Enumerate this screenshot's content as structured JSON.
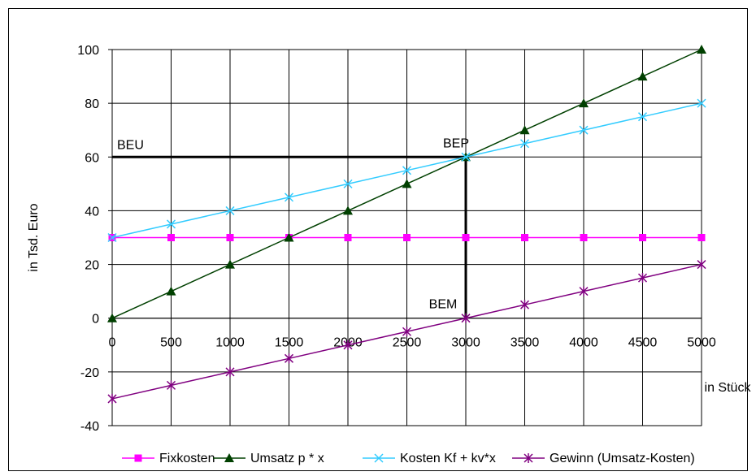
{
  "chart_data": {
    "type": "line",
    "title": "",
    "xlabel": "in Stück",
    "ylabel": "in Tsd. Euro",
    "x": [
      0,
      500,
      1000,
      1500,
      2000,
      2500,
      3000,
      3500,
      4000,
      4500,
      5000
    ],
    "xlim": [
      0,
      5000
    ],
    "ylim": [
      -40,
      100
    ],
    "x_ticks": [
      0,
      500,
      1000,
      1500,
      2000,
      2500,
      3000,
      3500,
      4000,
      4500,
      5000
    ],
    "y_ticks": [
      -40,
      -20,
      0,
      20,
      40,
      60,
      80,
      100
    ],
    "grid": true,
    "legend_position": "bottom",
    "series": [
      {
        "name": "Fixkosten",
        "color": "#ff00ff",
        "marker": "square",
        "values": [
          30,
          30,
          30,
          30,
          30,
          30,
          30,
          30,
          30,
          30,
          30
        ]
      },
      {
        "name": "Umsatz p * x",
        "color": "#004000",
        "marker": "triangle",
        "values": [
          0,
          10,
          20,
          30,
          40,
          50,
          60,
          70,
          80,
          90,
          100
        ]
      },
      {
        "name": "Kosten Kf + kv*x",
        "color": "#33ccff",
        "marker": "x",
        "values": [
          30,
          35,
          40,
          45,
          50,
          55,
          60,
          65,
          70,
          75,
          80
        ]
      },
      {
        "name": "Gewinn (Umsatz-Kosten)",
        "color": "#800080",
        "marker": "star",
        "values": [
          -30,
          -25,
          -20,
          -15,
          -10,
          -5,
          0,
          5,
          10,
          15,
          20
        ]
      }
    ],
    "annotations": [
      {
        "label": "BEU",
        "x": 0,
        "y": 60
      },
      {
        "label": "BEP",
        "x": 3000,
        "y": 60
      },
      {
        "label": "BEM",
        "x": 3000,
        "y": 0
      }
    ],
    "reference_lines": [
      {
        "from": [
          0,
          60
        ],
        "to": [
          3000,
          60
        ]
      },
      {
        "from": [
          3000,
          60
        ],
        "to": [
          3000,
          0
        ]
      }
    ]
  }
}
